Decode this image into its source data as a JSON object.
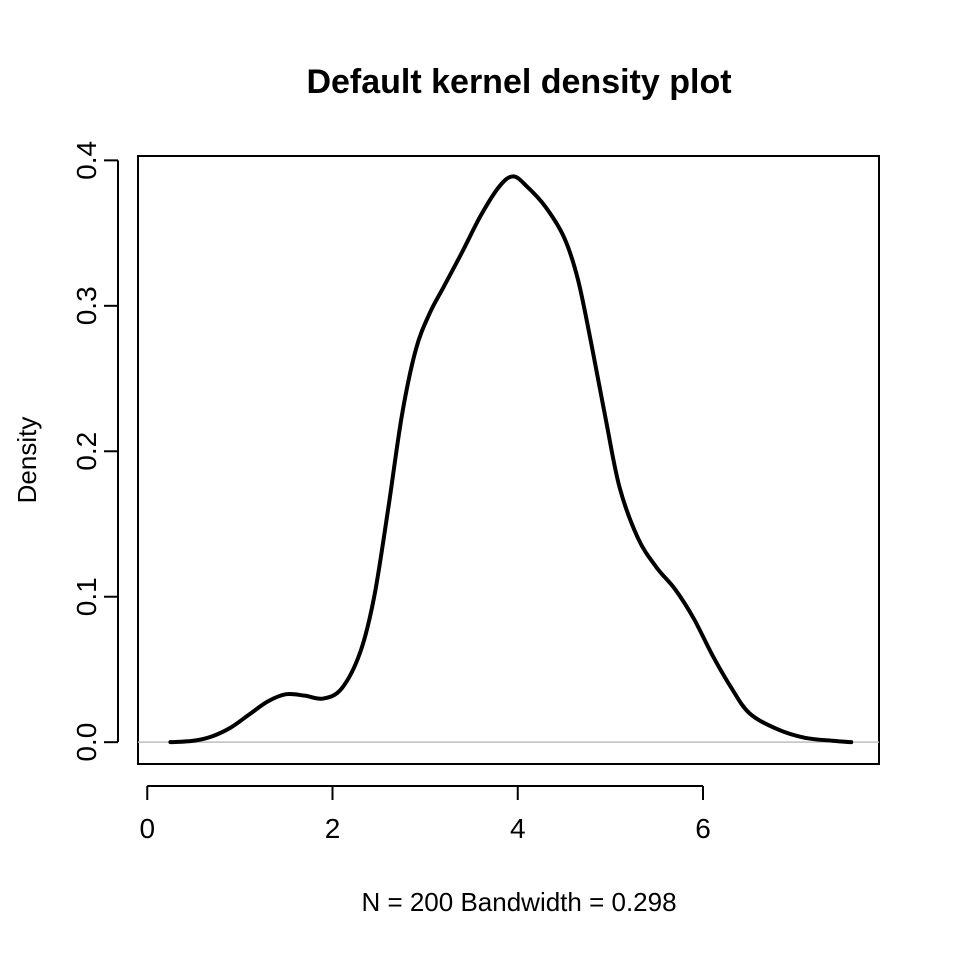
{
  "chart_data": {
    "type": "line",
    "title": "Default kernel density plot",
    "xlabel": "N = 200   Bandwidth = 0.298",
    "ylabel": "Density",
    "xlim": [
      -0.1,
      7.9
    ],
    "ylim": [
      -0.015,
      0.403
    ],
    "x_ticks": [
      0,
      2,
      4,
      6
    ],
    "x_tick_labels": [
      "0",
      "2",
      "4",
      "6"
    ],
    "y_ticks": [
      0.0,
      0.1,
      0.2,
      0.3,
      0.4
    ],
    "y_tick_labels": [
      "0.0",
      "0.1",
      "0.2",
      "0.3",
      "0.4"
    ],
    "grid": false,
    "baseline": 0,
    "series": [
      {
        "color": "#000000",
        "x": [
          0.25,
          0.5,
          0.7,
          0.9,
          1.1,
          1.3,
          1.5,
          1.7,
          1.9,
          2.1,
          2.3,
          2.45,
          2.6,
          2.75,
          2.9,
          3.05,
          3.2,
          3.4,
          3.6,
          3.8,
          3.95,
          4.1,
          4.3,
          4.5,
          4.65,
          4.8,
          4.95,
          5.1,
          5.3,
          5.5,
          5.7,
          5.9,
          6.1,
          6.3,
          6.5,
          6.8,
          7.1,
          7.4,
          7.6
        ],
        "y": [
          0.0,
          0.001,
          0.004,
          0.01,
          0.019,
          0.028,
          0.033,
          0.032,
          0.03,
          0.037,
          0.062,
          0.1,
          0.16,
          0.225,
          0.27,
          0.295,
          0.313,
          0.337,
          0.362,
          0.382,
          0.389,
          0.382,
          0.368,
          0.347,
          0.318,
          0.272,
          0.222,
          0.175,
          0.14,
          0.12,
          0.105,
          0.085,
          0.06,
          0.038,
          0.02,
          0.009,
          0.003,
          0.001,
          0.0
        ]
      }
    ]
  }
}
